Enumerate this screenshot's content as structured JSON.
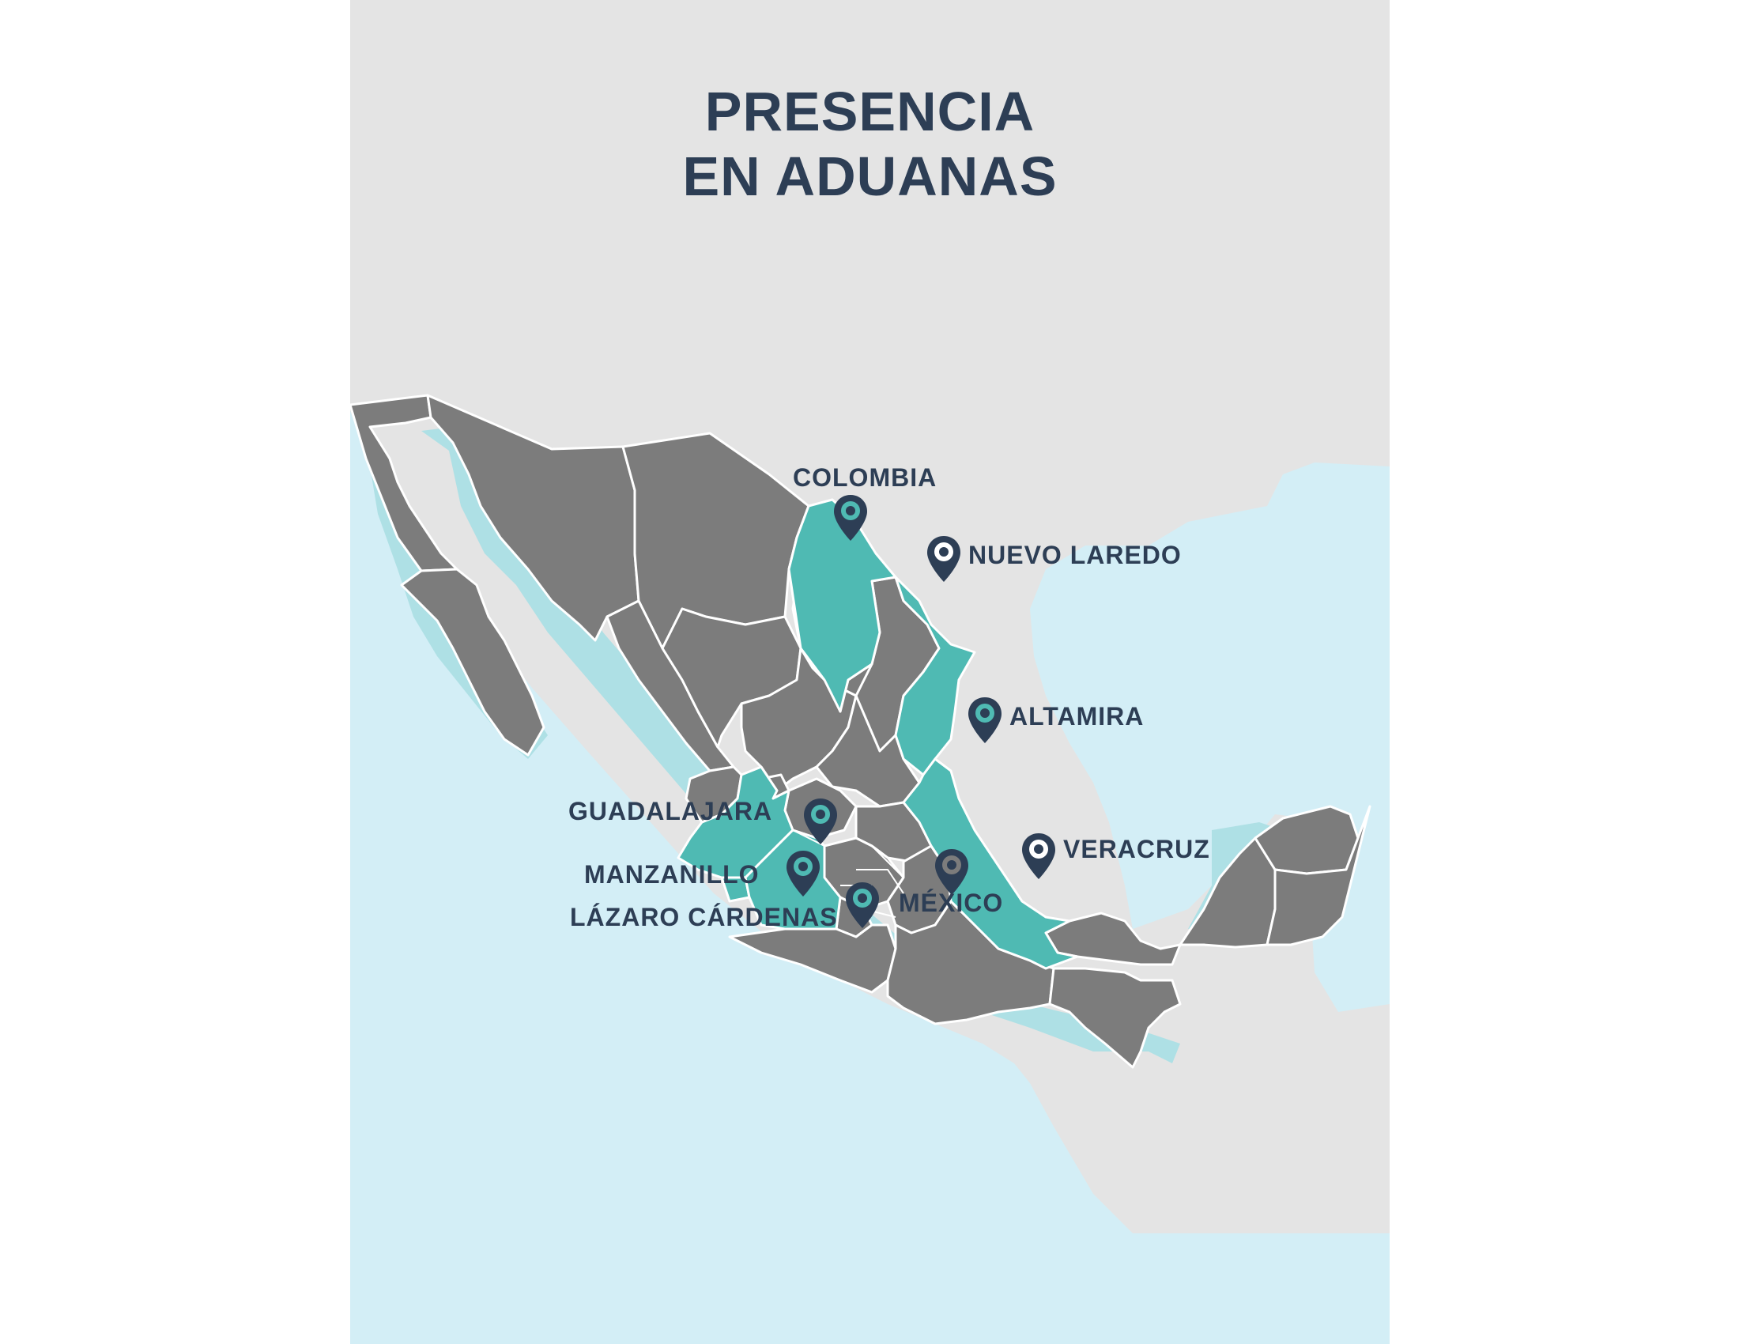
{
  "title": {
    "line1": "PRESENCIA",
    "line2": "EN ADUANAS"
  },
  "colors": {
    "land_background": "#e4e4e4",
    "sea": "#d3eef6",
    "shelf": "#aee0e5",
    "mexico_states": "#7c7c7c",
    "highlighted_states": "#4fbab3",
    "state_borders": "#ffffff",
    "pins_and_text": "#2d3e55"
  },
  "locations": [
    {
      "id": "colombia",
      "label": "COLOMBIA",
      "icon": "location-pin-icon"
    },
    {
      "id": "nuevo-laredo",
      "label": "NUEVO LAREDO",
      "icon": "location-pin-icon"
    },
    {
      "id": "altamira",
      "label": "ALTAMIRA",
      "icon": "location-pin-icon"
    },
    {
      "id": "guadalajara",
      "label": "GUADALAJARA",
      "icon": "location-pin-icon"
    },
    {
      "id": "veracruz",
      "label": "VERACRUZ",
      "icon": "location-pin-icon"
    },
    {
      "id": "manzanillo",
      "label": "MANZANILLO",
      "icon": "location-pin-icon"
    },
    {
      "id": "mexico",
      "label": "MÉXICO",
      "icon": "location-pin-icon"
    },
    {
      "id": "lazaro-cardenas",
      "label": "LÁZARO CÁRDENAS",
      "icon": "location-pin-icon"
    }
  ]
}
